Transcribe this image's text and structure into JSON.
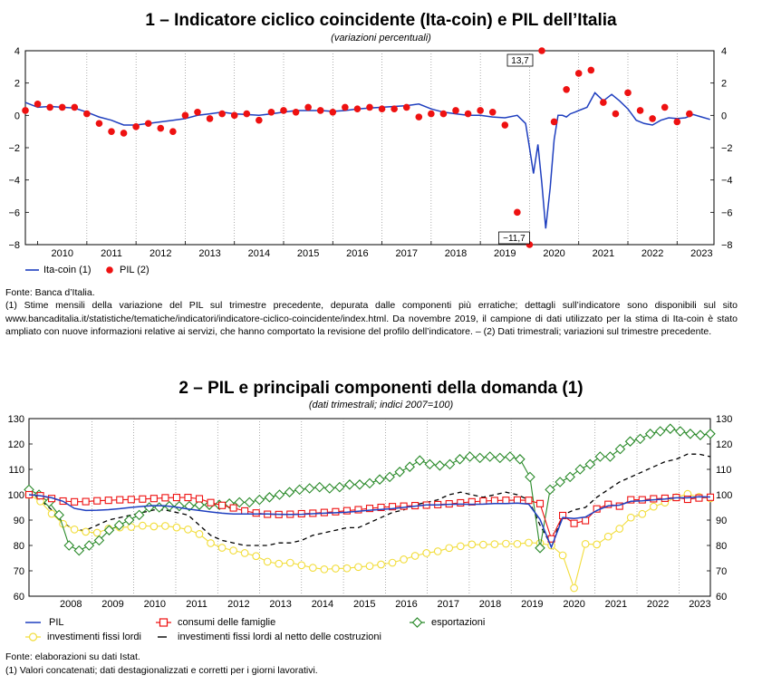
{
  "chart1_header": {
    "title": "1 – Indicatore ciclico coincidente (Ita-coin) e PIL dell’Italia",
    "subtitle": "(variazioni percentuali)"
  },
  "chart2_header": {
    "title": "2 – PIL e principali componenti della domanda (1)",
    "subtitle": "(dati trimestrali; indici 2007=100)"
  },
  "chart1_notes": {
    "source": "Fonte: Banca d’Italia.",
    "note": "(1) Stime mensili della variazione del PIL sul trimestre precedente, depurata dalle componenti più erratiche; dettagli sull’indicatore sono disponibili sul sito www.bancaditalia.it/statistiche/tematiche/indicatori/indicatore-ciclico-coincidente/index.html. Da novembre 2019, il campione di dati utilizzato per la stima di Ita-coin è stato ampliato con nuove informazioni relative ai servizi, che hanno comportato la revisione del profilo dell’indicatore. – (2) Dati trimestrali; variazioni sul trimestre precedente."
  },
  "chart2_notes": {
    "source": "Fonte: elaborazioni su dati Istat.",
    "note": "(1) Valori concatenati; dati destagionalizzati e corretti per i giorni lavorativi."
  },
  "chart_data": [
    {
      "type": "line",
      "title": "1 – Indicatore ciclico coincidente (Ita-coin) e PIL dell’Italia",
      "subtitle": "(variazioni percentuali)",
      "ylim": [
        -8,
        4
      ],
      "y_ticks": [
        "4",
        "2",
        "0",
        "−2",
        "−4",
        "−6",
        "−8"
      ],
      "x_ticks": [
        "2010",
        "2011",
        "2012",
        "2013",
        "2014",
        "2015",
        "2016",
        "2017",
        "2018",
        "2019",
        "2020",
        "2021",
        "2022",
        "2023"
      ],
      "x_range": [
        2009.75,
        2023.75
      ],
      "annotations": [
        "13,7",
        "−11,7"
      ],
      "legend": [
        "Ita-coin (1)",
        "PIL (2)"
      ],
      "series": [
        {
          "name": "Ita-coin (1)",
          "color": "#1f3fbf",
          "style": "line",
          "points": [
            [
              2009.75,
              0.8
            ],
            [
              2010.0,
              0.5
            ],
            [
              2010.25,
              0.55
            ],
            [
              2010.5,
              0.5
            ],
            [
              2010.75,
              0.45
            ],
            [
              2011.0,
              0.2
            ],
            [
              2011.25,
              -0.1
            ],
            [
              2011.5,
              -0.3
            ],
            [
              2011.75,
              -0.6
            ],
            [
              2012.0,
              -0.6
            ],
            [
              2012.25,
              -0.5
            ],
            [
              2012.5,
              -0.4
            ],
            [
              2012.75,
              -0.3
            ],
            [
              2013.0,
              -0.2
            ],
            [
              2013.25,
              0.0
            ],
            [
              2013.5,
              0.1
            ],
            [
              2013.75,
              0.2
            ],
            [
              2014.0,
              0.1
            ],
            [
              2014.25,
              0.05
            ],
            [
              2014.5,
              0.0
            ],
            [
              2014.75,
              0.1
            ],
            [
              2015.0,
              0.2
            ],
            [
              2015.25,
              0.3
            ],
            [
              2015.5,
              0.3
            ],
            [
              2015.75,
              0.3
            ],
            [
              2016.0,
              0.25
            ],
            [
              2016.25,
              0.3
            ],
            [
              2016.5,
              0.4
            ],
            [
              2016.75,
              0.45
            ],
            [
              2017.0,
              0.5
            ],
            [
              2017.25,
              0.55
            ],
            [
              2017.5,
              0.6
            ],
            [
              2017.75,
              0.7
            ],
            [
              2018.0,
              0.4
            ],
            [
              2018.25,
              0.2
            ],
            [
              2018.5,
              0.1
            ],
            [
              2018.75,
              0.0
            ],
            [
              2019.0,
              0.0
            ],
            [
              2019.25,
              -0.1
            ],
            [
              2019.5,
              -0.15
            ],
            [
              2019.75,
              0.0
            ],
            [
              2019.92,
              -0.5
            ],
            [
              2020.0,
              -2.0
            ],
            [
              2020.08,
              -3.6
            ],
            [
              2020.17,
              -1.8
            ],
            [
              2020.25,
              -4.2
            ],
            [
              2020.33,
              -7.0
            ],
            [
              2020.42,
              -4.5
            ],
            [
              2020.5,
              -1.5
            ],
            [
              2020.58,
              0.0
            ],
            [
              2020.67,
              0.0
            ],
            [
              2020.75,
              -0.1
            ],
            [
              2020.83,
              0.1
            ],
            [
              2020.92,
              0.2
            ],
            [
              2021.0,
              0.3
            ],
            [
              2021.17,
              0.5
            ],
            [
              2021.33,
              1.4
            ],
            [
              2021.5,
              0.9
            ],
            [
              2021.67,
              1.3
            ],
            [
              2021.83,
              0.9
            ],
            [
              2022.0,
              0.4
            ],
            [
              2022.17,
              -0.3
            ],
            [
              2022.33,
              -0.5
            ],
            [
              2022.5,
              -0.6
            ],
            [
              2022.67,
              -0.3
            ],
            [
              2022.83,
              -0.15
            ],
            [
              2023.0,
              -0.2
            ],
            [
              2023.17,
              -0.15
            ],
            [
              2023.33,
              0.05
            ],
            [
              2023.5,
              -0.1
            ],
            [
              2023.67,
              -0.25
            ]
          ]
        },
        {
          "name": "PIL (2)",
          "color": "#ee1111",
          "style": "dots",
          "points": [
            [
              2009.75,
              0.3
            ],
            [
              2010.0,
              0.7
            ],
            [
              2010.25,
              0.5
            ],
            [
              2010.5,
              0.5
            ],
            [
              2010.75,
              0.5
            ],
            [
              2011.0,
              0.1
            ],
            [
              2011.25,
              -0.5
            ],
            [
              2011.5,
              -1.0
            ],
            [
              2011.75,
              -1.1
            ],
            [
              2012.0,
              -0.7
            ],
            [
              2012.25,
              -0.5
            ],
            [
              2012.5,
              -0.8
            ],
            [
              2012.75,
              -1.0
            ],
            [
              2013.0,
              0.0
            ],
            [
              2013.25,
              0.2
            ],
            [
              2013.5,
              -0.2
            ],
            [
              2013.75,
              0.1
            ],
            [
              2014.0,
              0.0
            ],
            [
              2014.25,
              0.1
            ],
            [
              2014.5,
              -0.3
            ],
            [
              2014.75,
              0.2
            ],
            [
              2015.0,
              0.3
            ],
            [
              2015.25,
              0.2
            ],
            [
              2015.5,
              0.5
            ],
            [
              2015.75,
              0.3
            ],
            [
              2016.0,
              0.2
            ],
            [
              2016.25,
              0.5
            ],
            [
              2016.5,
              0.4
            ],
            [
              2016.75,
              0.5
            ],
            [
              2017.0,
              0.4
            ],
            [
              2017.25,
              0.4
            ],
            [
              2017.5,
              0.5
            ],
            [
              2017.75,
              -0.1
            ],
            [
              2018.0,
              0.1
            ],
            [
              2018.25,
              0.1
            ],
            [
              2018.5,
              0.3
            ],
            [
              2018.75,
              0.1
            ],
            [
              2019.0,
              0.3
            ],
            [
              2019.25,
              0.2
            ],
            [
              2019.5,
              -0.6
            ],
            [
              2019.75,
              -6.0
            ],
            [
              2020.0,
              -11.7
            ],
            [
              2020.25,
              13.7
            ],
            [
              2020.5,
              -0.4
            ],
            [
              2020.75,
              1.6
            ],
            [
              2021.0,
              2.6
            ],
            [
              2021.25,
              2.8
            ],
            [
              2021.5,
              0.8
            ],
            [
              2021.75,
              0.1
            ],
            [
              2022.0,
              1.4
            ],
            [
              2022.25,
              0.3
            ],
            [
              2022.5,
              -0.2
            ],
            [
              2022.75,
              0.5
            ],
            [
              2023.0,
              -0.4
            ],
            [
              2023.25,
              0.1
            ]
          ]
        }
      ]
    },
    {
      "type": "line",
      "title": "2 – PIL e principali componenti della domanda (1)",
      "subtitle": "(dati trimestrali; indici 2007=100)",
      "ylim": [
        60,
        130
      ],
      "y_ticks": [
        "130",
        "120",
        "110",
        "100",
        "90",
        "80",
        "70",
        "60"
      ],
      "x_ticks": [
        "2008",
        "2009",
        "2010",
        "2011",
        "2012",
        "2013",
        "2014",
        "2015",
        "2016",
        "2017",
        "2018",
        "2019",
        "2020",
        "2021",
        "2022",
        "2023"
      ],
      "x_range": [
        2007.5,
        2023.75
      ],
      "legend": [
        "PIL",
        "consumi delle famiglie",
        "esportazioni",
        "investimenti fissi lordi",
        "investimenti fissi lordi al netto delle costruzioni"
      ],
      "series": [
        {
          "name": "PIL",
          "color": "#1f3fbf",
          "style": "line",
          "values": [
            100,
            99.6,
            98.8,
            97.4,
            94.6,
            93.8,
            93.9,
            94.1,
            94.5,
            95.0,
            95.4,
            95.7,
            95.6,
            95.1,
            94.4,
            93.8,
            93.2,
            92.7,
            92.4,
            92.4,
            92.4,
            92.4,
            92.3,
            92.2,
            92.3,
            92.5,
            92.7,
            92.9,
            93.1,
            93.5,
            93.9,
            94.2,
            94.5,
            95.0,
            95.5,
            96.0,
            96.0,
            96.2,
            96.3,
            96.2,
            96.3,
            96.5,
            96.5,
            96.7,
            96.3,
            90.3,
            79.3,
            91.0,
            90.6,
            91.2,
            93.8,
            95.6,
            95.9,
            97.4,
            97.6,
            98.0,
            98.3,
            98.8,
            98.8,
            99.2,
            99.1
          ]
        },
        {
          "name": "consumi delle famiglie",
          "color": "#ee1111",
          "style": "squares",
          "values": [
            100,
            99.6,
            98.5,
            97.5,
            97.2,
            97.3,
            97.6,
            97.8,
            98.0,
            98.1,
            98.3,
            98.5,
            98.8,
            98.9,
            98.9,
            98.4,
            96.9,
            95.8,
            94.8,
            93.6,
            92.8,
            92.3,
            92.2,
            92.3,
            92.5,
            92.7,
            93.0,
            93.3,
            93.7,
            94.1,
            94.6,
            95.0,
            95.3,
            95.5,
            95.7,
            95.9,
            96.1,
            96.4,
            96.8,
            97.2,
            97.5,
            97.7,
            97.8,
            97.9,
            97.8,
            96.5,
            82.6,
            91.8,
            88.7,
            89.8,
            94.4,
            96.2,
            95.5,
            98.0,
            98.0,
            98.4,
            98.6,
            98.9,
            98.2,
            98.7,
            99.0
          ]
        },
        {
          "name": "esportazioni",
          "color": "#2a8a2a",
          "style": "diamonds",
          "values": [
            102,
            100,
            97,
            92,
            80,
            78,
            80,
            82,
            86,
            88,
            90,
            92,
            95,
            95,
            95.5,
            95.5,
            95.5,
            96,
            96,
            96,
            96.5,
            97,
            97,
            98,
            99,
            100,
            101,
            102,
            102.5,
            103,
            102.5,
            103,
            104,
            104,
            104.5,
            106,
            107,
            109,
            111,
            113.5,
            112,
            111.5,
            112,
            114,
            115,
            114.5,
            115,
            114.5,
            115,
            114,
            107,
            79,
            102,
            105,
            107,
            110,
            112,
            115,
            115,
            118,
            121,
            122,
            124,
            125,
            126,
            125,
            124,
            123.5,
            124
          ]
        },
        {
          "name": "investimenti fissi lordi",
          "color": "#f2dd3a",
          "style": "circles",
          "values": [
            100,
            97.4,
            92.5,
            88.5,
            86.3,
            85.4,
            85.0,
            86.6,
            87.1,
            87.3,
            87.8,
            87.5,
            87.7,
            87.1,
            86.3,
            84.5,
            80.9,
            79.1,
            78.0,
            77.0,
            75.8,
            73.6,
            72.8,
            73.2,
            72.2,
            71.2,
            70.6,
            70.9,
            71.0,
            71.5,
            71.9,
            72.5,
            73.2,
            74.5,
            75.9,
            77.0,
            77.7,
            79.0,
            79.7,
            80.4,
            80.3,
            80.5,
            80.7,
            80.6,
            81.1,
            80.9,
            80.0,
            76.1,
            63.2,
            80.6,
            80.4,
            83.5,
            86.6,
            91.0,
            92.4,
            95.3,
            96.9,
            99.0,
            100.3,
            99.1,
            98.6
          ]
        },
        {
          "name": "investimenti fissi lordi al netto delle costruzioni",
          "color": "#000000",
          "style": "dashed",
          "values": [
            101,
            98,
            94,
            89,
            86,
            86,
            88,
            90,
            91,
            92,
            93,
            94,
            94,
            93,
            92,
            88,
            84,
            82,
            81,
            80,
            80,
            80,
            81,
            81,
            82,
            84,
            85,
            86,
            87,
            87,
            89,
            91,
            93,
            94,
            96,
            97,
            98,
            100,
            101,
            100,
            99,
            100,
            101,
            100,
            98,
            88,
            80,
            92,
            94,
            95,
            99,
            102,
            105,
            107,
            109,
            111,
            113,
            114,
            116,
            116,
            115
          ]
        }
      ]
    }
  ]
}
